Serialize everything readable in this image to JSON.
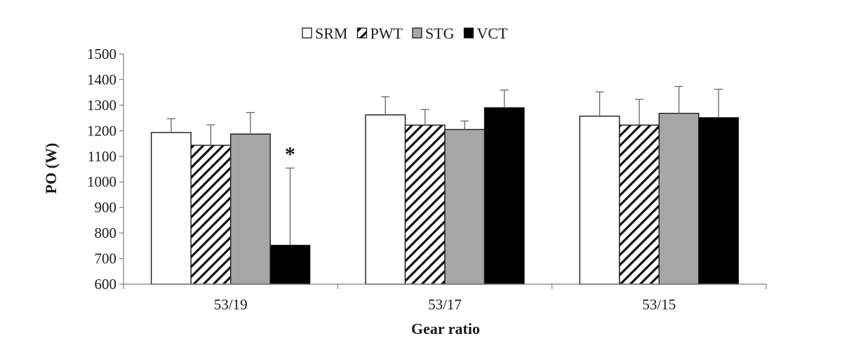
{
  "chart_data": {
    "type": "bar",
    "title": "",
    "xlabel": "Gear ratio",
    "ylabel": "PO (W)",
    "ylim": [
      600,
      1500
    ],
    "yticks": [
      600,
      700,
      800,
      900,
      1000,
      1100,
      1200,
      1300,
      1400,
      1500
    ],
    "grid": false,
    "legend_position": "top-center",
    "categories": [
      "53/19",
      "53/17",
      "53/15"
    ],
    "series": [
      {
        "name": "SRM",
        "pattern": "white",
        "values": [
          1193,
          1262,
          1257
        ],
        "error_upper": [
          1247,
          1333,
          1352
        ]
      },
      {
        "name": "PWT",
        "pattern": "hatched",
        "values": [
          1143,
          1222,
          1222
        ],
        "error_upper": [
          1223,
          1283,
          1323
        ]
      },
      {
        "name": "STG",
        "pattern": "gray",
        "values": [
          1187,
          1205,
          1268
        ],
        "error_upper": [
          1271,
          1238,
          1373
        ]
      },
      {
        "name": "VCT",
        "pattern": "black",
        "values": [
          752,
          1290,
          1251
        ],
        "error_upper": [
          1054,
          1359,
          1362
        ]
      }
    ],
    "annotations": [
      {
        "text": "*",
        "category": "53/19",
        "series": "VCT"
      }
    ],
    "colors": {
      "SRM": "#ffffff",
      "PWT": "#ffffff",
      "STG": "#a6a6a6",
      "VCT": "#000000",
      "axis": "#7f7f7f",
      "stroke": "#1a1a1a"
    }
  }
}
